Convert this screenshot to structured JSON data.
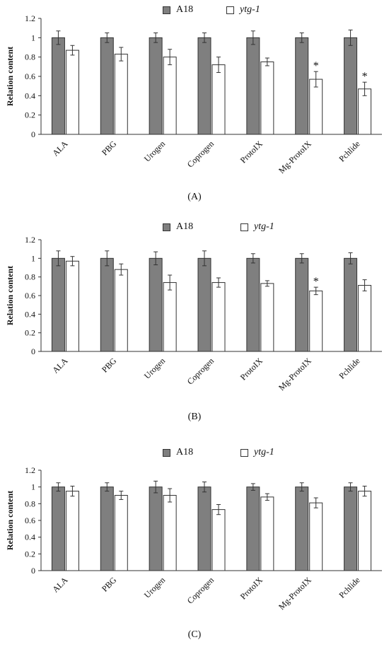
{
  "legend": {
    "series_a": "A18",
    "series_b": "ytg-1"
  },
  "colors": {
    "a18": "#7f7f7f",
    "ytg1": "#ffffff",
    "axis": "#333333"
  },
  "chart_data": [
    {
      "type": "bar",
      "panel_label": "(A)",
      "ylabel": "Relation content",
      "ylim": [
        0,
        1.2
      ],
      "yticks": [
        "0",
        "0.2",
        "0.4",
        "0.6",
        "0.8",
        "1",
        "1.2"
      ],
      "categories": [
        "ALA",
        "PBG",
        "Urogen",
        "Coprogen",
        "ProtoIX",
        "Mg-ProtoIX",
        "Pchlide"
      ],
      "series": [
        {
          "name": "A18",
          "values": [
            1.0,
            1.0,
            1.0,
            1.0,
            1.0,
            1.0,
            1.0
          ],
          "errors": [
            0.07,
            0.05,
            0.05,
            0.05,
            0.07,
            0.05,
            0.08
          ]
        },
        {
          "name": "ytg-1",
          "values": [
            0.87,
            0.83,
            0.8,
            0.72,
            0.75,
            0.57,
            0.47
          ],
          "errors": [
            0.05,
            0.07,
            0.08,
            0.08,
            0.04,
            0.08,
            0.07
          ]
        }
      ],
      "annotations": [
        {
          "category": "Mg-ProtoIX",
          "series": "ytg-1",
          "text": "*"
        },
        {
          "category": "Pchlide",
          "series": "ytg-1",
          "text": "*"
        }
      ]
    },
    {
      "type": "bar",
      "panel_label": "(B)",
      "ylabel": "Relation content",
      "ylim": [
        0,
        1.2
      ],
      "yticks": [
        "0",
        "0.2",
        "0.4",
        "0.6",
        "0.8",
        "1",
        "1.2"
      ],
      "categories": [
        "ALA",
        "PBG",
        "Urogen",
        "Coprogen",
        "ProtoIX",
        "Mg-ProtoIX",
        "Pchlide"
      ],
      "series": [
        {
          "name": "A18",
          "values": [
            1.0,
            1.0,
            1.0,
            1.0,
            1.0,
            1.0,
            1.0
          ],
          "errors": [
            0.08,
            0.08,
            0.07,
            0.08,
            0.05,
            0.05,
            0.06
          ]
        },
        {
          "name": "ytg-1",
          "values": [
            0.97,
            0.88,
            0.74,
            0.74,
            0.73,
            0.65,
            0.71
          ],
          "errors": [
            0.05,
            0.06,
            0.08,
            0.05,
            0.03,
            0.04,
            0.06
          ]
        }
      ],
      "annotations": [
        {
          "category": "Mg-ProtoIX",
          "series": "ytg-1",
          "text": "*"
        }
      ]
    },
    {
      "type": "bar",
      "panel_label": "(C)",
      "ylabel": "Relation content",
      "ylim": [
        0,
        1.2
      ],
      "yticks": [
        "0",
        "0.2",
        "0.4",
        "0.6",
        "0.8",
        "1",
        "1.2"
      ],
      "categories": [
        "ALA",
        "PBG",
        "Urogen",
        "Coprogen",
        "ProtoIX",
        "Mg-ProtoIX",
        "Pchlide"
      ],
      "series": [
        {
          "name": "A18",
          "values": [
            1.0,
            1.0,
            1.0,
            1.0,
            1.0,
            1.0,
            1.0
          ],
          "errors": [
            0.05,
            0.05,
            0.07,
            0.06,
            0.04,
            0.05,
            0.05
          ]
        },
        {
          "name": "ytg-1",
          "values": [
            0.95,
            0.9,
            0.9,
            0.73,
            0.88,
            0.81,
            0.95
          ],
          "errors": [
            0.06,
            0.05,
            0.08,
            0.06,
            0.04,
            0.06,
            0.06
          ]
        }
      ],
      "annotations": []
    }
  ]
}
